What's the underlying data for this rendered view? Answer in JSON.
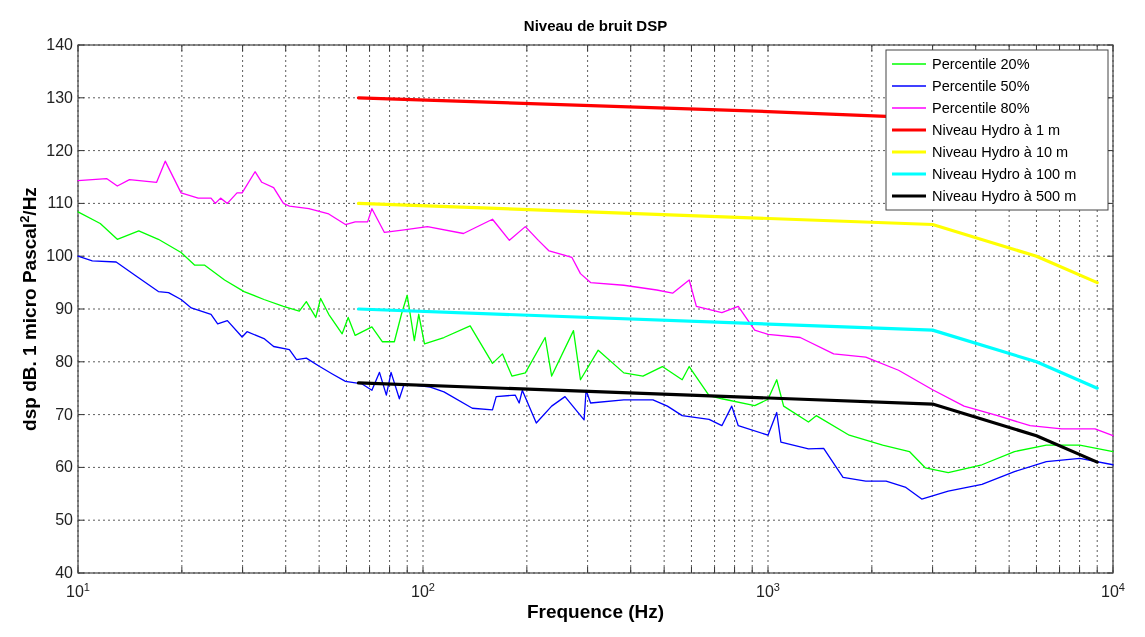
{
  "chart_data": {
    "type": "line",
    "title": "Niveau de bruit DSP",
    "xlabel": "Frequence (Hz)",
    "ylabel": "dsp dB. 1 micro Pascal$^{2}$/Hz",
    "log": "x",
    "grid": true,
    "legend": "top right",
    "line_style": "solid",
    "marker": "none",
    "xlim": [
      10,
      10000
    ],
    "ylim": [
      40,
      140
    ],
    "xticks": [
      {
        "value": 10,
        "label": "10$^{1}$"
      },
      {
        "value": 20,
        "label": null
      },
      {
        "value": 30,
        "label": null
      },
      {
        "value": 40,
        "label": null
      },
      {
        "value": 50,
        "label": null
      },
      {
        "value": 60,
        "label": null
      },
      {
        "value": 70,
        "label": null
      },
      {
        "value": 80,
        "label": null
      },
      {
        "value": 90,
        "label": null
      },
      {
        "value": 100,
        "label": "10$^{2}$"
      },
      {
        "value": 200,
        "label": null
      },
      {
        "value": 300,
        "label": null
      },
      {
        "value": 400,
        "label": null
      },
      {
        "value": 500,
        "label": null
      },
      {
        "value": 600,
        "label": null
      },
      {
        "value": 700,
        "label": null
      },
      {
        "value": 800,
        "label": null
      },
      {
        "value": 900,
        "label": null
      },
      {
        "value": 1000,
        "label": "10$^{3}$"
      },
      {
        "value": 2000,
        "label": null
      },
      {
        "value": 3000,
        "label": null
      },
      {
        "value": 4000,
        "label": null
      },
      {
        "value": 5000,
        "label": null
      },
      {
        "value": 6000,
        "label": null
      },
      {
        "value": 7000,
        "label": null
      },
      {
        "value": 8000,
        "label": null
      },
      {
        "value": 9000,
        "label": null
      },
      {
        "value": 10000,
        "label": "10$^{4}$"
      }
    ],
    "yticks": [
      40,
      50,
      60,
      70,
      80,
      90,
      100,
      110,
      120,
      130,
      140
    ],
    "series": [
      {
        "name": "Percentile 20%",
        "color": "#00ff00",
        "x": [
          10,
          11.6,
          13,
          15,
          17.1,
          19.9,
          21.8,
          23.3,
          26.6,
          30.3,
          34.6,
          39.4,
          43.8,
          45.9,
          48.9,
          50.5,
          53.3,
          58.3,
          60.7,
          63.6,
          71.1,
          76.2,
          82.6,
          86.6,
          90,
          94.4,
          97.2,
          101,
          115,
          137,
          159,
          170,
          181,
          198,
          226,
          236,
          273,
          286,
          322,
          382,
          434,
          494,
          564,
          591,
          675,
          735,
          915,
          1000,
          1060,
          1110,
          1310,
          1380,
          1720,
          2150,
          2570,
          2860,
          3330,
          4170,
          5180,
          6410,
          8010,
          10000
        ],
        "values": [
          108.4,
          106.2,
          103.2,
          104.8,
          103.2,
          100.7,
          98.3,
          98.3,
          95.5,
          93.3,
          91.8,
          90.5,
          89.6,
          91.4,
          88.4,
          92,
          89,
          85.3,
          88.4,
          85,
          86.6,
          83.8,
          83.8,
          89,
          92.6,
          84,
          89,
          83.4,
          84.6,
          86.8,
          79.7,
          81.5,
          77.3,
          77.9,
          84.6,
          77.3,
          85.9,
          76.6,
          82.2,
          77.9,
          77.3,
          79.1,
          76.6,
          79.1,
          73.6,
          73,
          71.7,
          72.9,
          76.6,
          71.6,
          68.6,
          69.8,
          66.1,
          64.2,
          63,
          59.9,
          59,
          60.5,
          63,
          64.2,
          64.2,
          63
        ]
      },
      {
        "name": "Percentile 50%",
        "color": "#0000ff",
        "x": [
          10,
          11,
          12.9,
          14.7,
          17.1,
          18.3,
          19.9,
          21.3,
          24.3,
          25.4,
          27.1,
          29.9,
          30.9,
          34.6,
          36.9,
          41,
          43,
          45.9,
          49.9,
          54.6,
          59.6,
          66.6,
          71.1,
          74.8,
          78.3,
          80.8,
          85.4,
          88.2,
          105,
          115,
          139,
          159,
          163,
          185,
          190,
          194,
          213,
          236,
          258,
          293,
          297,
          306,
          382,
          464,
          511,
          564,
          675,
          735,
          785,
          820,
          1000,
          1060,
          1090,
          1310,
          1450,
          1650,
          1920,
          2200,
          2510,
          2790,
          3330,
          4170,
          5180,
          6410,
          8010,
          10000
        ],
        "values": [
          100,
          99.1,
          98.9,
          96.3,
          93.3,
          93.1,
          91.8,
          90.2,
          89,
          87.2,
          87.8,
          84.7,
          85.7,
          84.4,
          82.9,
          82.3,
          80.4,
          80.7,
          79.2,
          77.7,
          76.3,
          75.8,
          74.6,
          78,
          73.7,
          78,
          73,
          75.8,
          75.2,
          74.3,
          71.2,
          70.9,
          73.4,
          73.7,
          72.2,
          74.6,
          68.4,
          71.6,
          73.4,
          69,
          74.6,
          72.2,
          72.8,
          72.8,
          71.6,
          69.8,
          69.1,
          67.9,
          71.6,
          67.9,
          66.1,
          70.4,
          64.8,
          63.5,
          63.6,
          58.1,
          57.4,
          57.4,
          56.2,
          54,
          55.5,
          56.8,
          59.2,
          61.1,
          61.7,
          60.5
        ]
      },
      {
        "name": "Percentile 80%",
        "color": "#ff00ff",
        "x": [
          10,
          12.1,
          13,
          14.1,
          16.9,
          17.9,
          19.9,
          22.3,
          24.3,
          25,
          25.9,
          27.1,
          28.9,
          29.9,
          32.6,
          34.1,
          36.9,
          39.4,
          41,
          46.7,
          53.3,
          59.6,
          63.6,
          69.1,
          71.1,
          77.3,
          88.2,
          103,
          131,
          159,
          178,
          198,
          216,
          232,
          270,
          286,
          306,
          382,
          476,
          529,
          591,
          620,
          735,
          820,
          915,
          1000,
          1240,
          1550,
          1920,
          2390,
          3000,
          3700,
          4630,
          5750,
          7100,
          8870,
          10000
        ],
        "values": [
          114.3,
          114.7,
          113.3,
          114.5,
          114,
          118,
          112,
          111,
          111,
          110,
          111,
          110,
          112,
          112,
          116,
          114,
          113,
          110,
          109.5,
          109,
          108,
          106,
          106.5,
          106.5,
          109,
          104.5,
          105,
          105.6,
          104.3,
          107,
          103,
          105.6,
          103,
          101,
          99.8,
          96.7,
          95,
          94.5,
          93.6,
          93,
          95.5,
          90.5,
          89.3,
          90.5,
          86,
          85.2,
          84.6,
          81.5,
          80.9,
          78.4,
          74.7,
          71.6,
          69.8,
          67.9,
          67.3,
          67.3,
          66
        ]
      },
      {
        "name": "Niveau Hydro à 1 m",
        "color": "#ff0000",
        "x": [
          65,
          1000,
          2200
        ],
        "values": [
          130,
          127.4,
          126.5
        ]
      },
      {
        "name": "Niveau Hydro à 10 m",
        "color": "#ffff00",
        "x": [
          65,
          3000,
          6000,
          9000
        ],
        "values": [
          110,
          106,
          100,
          95
        ]
      },
      {
        "name": "Niveau Hydro à 100 m",
        "color": "#00ffff",
        "x": [
          65,
          3000,
          6000,
          9000
        ],
        "values": [
          90,
          86,
          80,
          75
        ]
      },
      {
        "name": "Niveau Hydro à 500 m",
        "color": "#000000",
        "x": [
          65,
          3000,
          6000,
          9000
        ],
        "values": [
          76,
          72,
          66,
          61
        ]
      }
    ]
  }
}
